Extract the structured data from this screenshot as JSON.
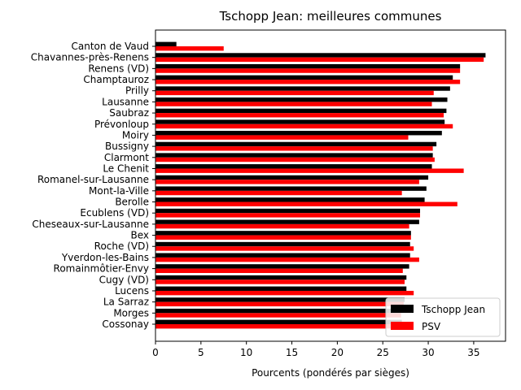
{
  "chart_data": {
    "type": "bar",
    "orientation": "horizontal",
    "title": "Tschopp Jean: meilleures communes",
    "xlabel": "Pourcents (pondérés par sièges)",
    "ylabel": "",
    "xlim": [
      0,
      38.5
    ],
    "xticks": [
      0,
      5,
      10,
      15,
      20,
      25,
      30,
      35
    ],
    "categories": [
      "Canton de Vaud",
      "Chavannes-près-Renens",
      "Renens (VD)",
      "Champtauroz",
      "Prilly",
      "Lausanne",
      "Saubraz",
      "Prévonloup",
      "Moiry",
      "Bussigny",
      "Clarmont",
      "Le Chenit",
      "Romanel-sur-Lausanne",
      "Mont-la-Ville",
      "Berolle",
      "Ecublens (VD)",
      "Cheseaux-sur-Lausanne",
      "Bex",
      "Roche (VD)",
      "Yverdon-les-Bains",
      "Romainmôtier-Envy",
      "Cugy (VD)",
      "Lucens",
      "La Sarraz",
      "Morges",
      "Cossonay"
    ],
    "series": [
      {
        "name": "Tschopp Jean",
        "color": "#000000",
        "values": [
          2.3,
          36.3,
          33.5,
          32.7,
          32.4,
          32.1,
          32.0,
          31.8,
          31.5,
          30.9,
          30.5,
          30.4,
          30.0,
          29.8,
          29.6,
          29.1,
          29.0,
          28.1,
          28.0,
          28.0,
          27.9,
          27.6,
          27.6,
          27.4,
          27.2,
          27.1
        ]
      },
      {
        "name": "PSV",
        "color": "#ff0000",
        "values": [
          7.5,
          36.1,
          33.5,
          33.5,
          30.6,
          30.4,
          31.7,
          32.7,
          27.8,
          30.5,
          30.7,
          33.9,
          29.0,
          27.1,
          33.2,
          29.1,
          27.9,
          28.1,
          28.4,
          29.0,
          27.2,
          27.4,
          28.4,
          27.3,
          27.0,
          27.1
        ]
      }
    ],
    "legend": {
      "position": "bottom-right",
      "entries": [
        "Tschopp Jean",
        "PSV"
      ]
    }
  }
}
